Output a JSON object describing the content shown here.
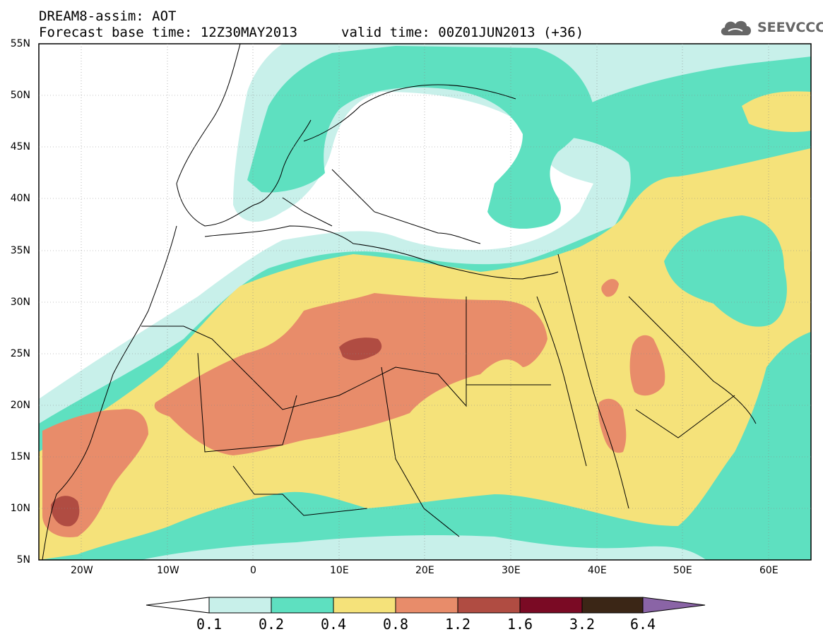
{
  "header": {
    "title_line1": "DREAM8-assim: AOT",
    "title_line2": "Forecast base time: 12Z30MAY2013",
    "valid_time": "valid time: 00Z01JUN2013 (+36)",
    "logo_text": "SEEVCCC",
    "logo_icon": "cloud-icon"
  },
  "map": {
    "lat_labels": [
      "55N",
      "50N",
      "45N",
      "40N",
      "35N",
      "30N",
      "25N",
      "20N",
      "15N",
      "10N",
      "5N"
    ],
    "lon_labels": [
      "20W",
      "10W",
      "0",
      "10E",
      "20E",
      "30E",
      "40E",
      "50E",
      "60E"
    ],
    "colors": {
      "c01": "#c8f0ea",
      "c02": "#5ee0c0",
      "c04": "#f5e27a",
      "c08": "#e88c6a",
      "c12": "#b04c42",
      "c16": "#7a0a24",
      "c32": "#3b2616",
      "c64": "#8a64a6",
      "land": "#ffffff",
      "coast": "#000000"
    }
  },
  "colorbar": {
    "labels": [
      "0.1",
      "0.2",
      "0.4",
      "0.8",
      "1.2",
      "1.6",
      "3.2",
      "6.4"
    ]
  }
}
